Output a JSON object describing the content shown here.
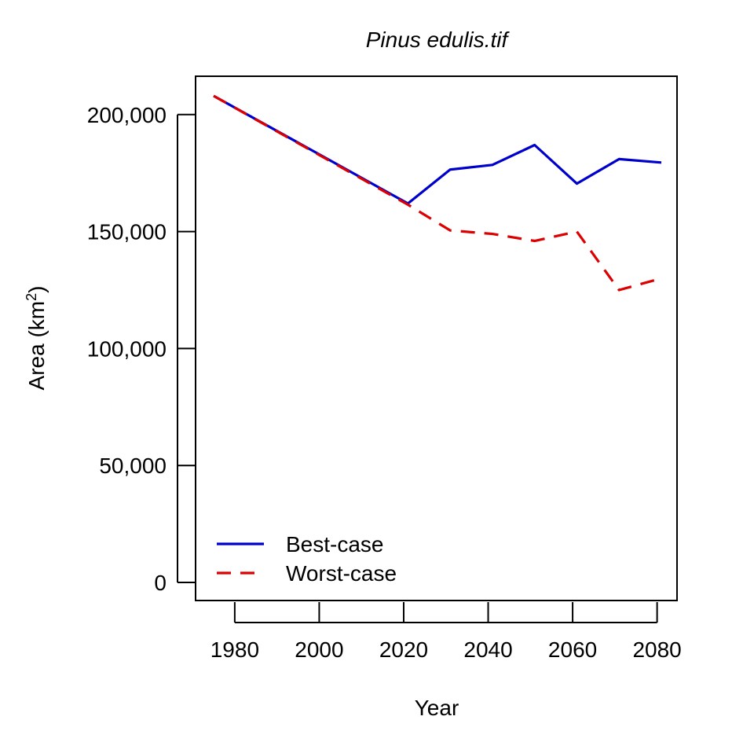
{
  "chart_data": {
    "type": "line",
    "title": "Pinus edulis.tif",
    "xlabel": "Year",
    "ylabel": "Area (km",
    "ylabel_superscript": "2",
    "ylabel_suffix": ")",
    "xlim": [
      1975,
      2081
    ],
    "ylim": [
      0,
      208000
    ],
    "x_ticks": [
      1980,
      2000,
      2020,
      2040,
      2060,
      2080
    ],
    "x_tick_labels": [
      "1980",
      "2000",
      "2020",
      "2040",
      "2060",
      "2080"
    ],
    "y_ticks": [
      0,
      50000,
      100000,
      150000,
      200000
    ],
    "y_tick_labels": [
      "0",
      "50,000",
      "100,000",
      "150,000",
      "200,000"
    ],
    "legend_position": "bottom-left",
    "grid": false,
    "series": [
      {
        "name": "Best-case",
        "color": "#0000CC",
        "style": "solid",
        "x": [
          1975,
          2021,
          2031,
          2041,
          2051,
          2061,
          2071,
          2081
        ],
        "y": [
          208000,
          162000,
          176500,
          178500,
          187000,
          170500,
          181000,
          179500
        ]
      },
      {
        "name": "Worst-case",
        "color": "#DD0000",
        "style": "dashed",
        "x": [
          1975,
          2021,
          2031,
          2041,
          2051,
          2061,
          2071,
          2081
        ],
        "y": [
          208000,
          161500,
          150500,
          149000,
          146000,
          150000,
          125000,
          130000
        ]
      }
    ]
  }
}
